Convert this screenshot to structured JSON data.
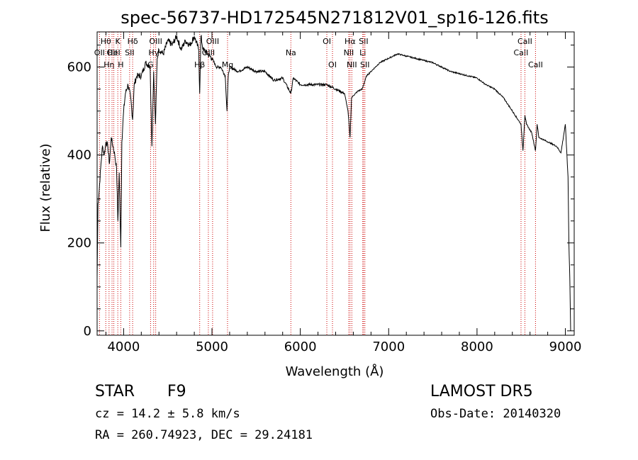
{
  "chart_data": {
    "type": "line",
    "title": "spec-56737-HD172545N271812V01_sp16-126.fits",
    "xlabel": "Wavelength (Å)",
    "ylabel": "Flux (relative)",
    "xlim": [
      3700,
      9100
    ],
    "ylim": [
      -10,
      680
    ],
    "xticks": [
      4000,
      5000,
      6000,
      7000,
      8000,
      9000
    ],
    "yticks": [
      0,
      200,
      400,
      600
    ],
    "grid": false,
    "series": [
      {
        "x": [
          3700,
          3710,
          3720,
          3740,
          3760,
          3780,
          3800,
          3820,
          3840,
          3860,
          3880,
          3900,
          3920,
          3935,
          3950,
          3968,
          3980,
          4000,
          4020,
          4050,
          4080,
          4102,
          4120,
          4150,
          4200,
          4250,
          4300,
          4320,
          4340,
          4360,
          4380,
          4400,
          4450,
          4500,
          4550,
          4600,
          4650,
          4700,
          4750,
          4800,
          4850,
          4861,
          4875,
          4900,
          4950,
          5000,
          5050,
          5100,
          5150,
          5170,
          5184,
          5200,
          5300,
          5400,
          5500,
          5600,
          5700,
          5800,
          5893,
          5920,
          6000,
          6100,
          6200,
          6300,
          6400,
          6500,
          6540,
          6563,
          6580,
          6600,
          6650,
          6700,
          6750,
          6800,
          6900,
          7000,
          7100,
          7200,
          7300,
          7400,
          7500,
          7600,
          7700,
          7800,
          7900,
          8000,
          8100,
          8200,
          8300,
          8400,
          8498,
          8520,
          8542,
          8560,
          8620,
          8662,
          8680,
          8700,
          8800,
          8900,
          8950,
          9000,
          9030,
          9040,
          9050,
          9060
        ],
        "y": [
          120,
          290,
          310,
          370,
          420,
          400,
          430,
          420,
          380,
          440,
          420,
          400,
          370,
          250,
          360,
          190,
          430,
          500,
          540,
          560,
          530,
          480,
          560,
          580,
          580,
          610,
          600,
          420,
          590,
          470,
          620,
          640,
          630,
          660,
          650,
          670,
          640,
          660,
          650,
          670,
          640,
          540,
          670,
          640,
          630,
          620,
          600,
          600,
          580,
          500,
          580,
          600,
          590,
          600,
          590,
          590,
          570,
          575,
          540,
          575,
          560,
          560,
          560,
          560,
          550,
          540,
          500,
          440,
          530,
          535,
          545,
          550,
          580,
          590,
          610,
          620,
          630,
          625,
          620,
          615,
          610,
          600,
          590,
          585,
          580,
          575,
          560,
          550,
          530,
          500,
          470,
          410,
          490,
          470,
          450,
          410,
          470,
          440,
          430,
          420,
          405,
          470,
          350,
          200,
          120,
          0
        ]
      }
    ],
    "line_marks": [
      {
        "x": 3727,
        "labels": [
          "OII"
        ],
        "row": 2
      },
      {
        "x": 3798,
        "labels": [
          "Hθ"
        ],
        "row": 1
      },
      {
        "x": 3835,
        "labels": [
          "Hη"
        ],
        "row": 3
      },
      {
        "x": 3869,
        "labels": [
          "OII"
        ],
        "row": 2
      },
      {
        "x": 3889,
        "labels": [
          "HeI"
        ],
        "row": 2
      },
      {
        "x": 3934,
        "labels": [
          "K"
        ],
        "row": 1
      },
      {
        "x": 3968,
        "labels": [
          "H"
        ],
        "row": 3
      },
      {
        "x": 4102,
        "labels": [
          "Hδ"
        ],
        "row": 1
      },
      {
        "x": 4068,
        "labels": [
          "SII"
        ],
        "row": 2
      },
      {
        "x": 4305,
        "labels": [
          "G"
        ],
        "row": 3
      },
      {
        "x": 4340,
        "labels": [
          "Hγ"
        ],
        "row": 2
      },
      {
        "x": 4363,
        "labels": [
          "OIII"
        ],
        "row": 1
      },
      {
        "x": 4861,
        "labels": [
          "Hβ"
        ],
        "row": 3
      },
      {
        "x": 4959,
        "labels": [
          "OIII"
        ],
        "row": 2
      },
      {
        "x": 5007,
        "labels": [
          "OIII"
        ],
        "row": 1
      },
      {
        "x": 5176,
        "labels": [
          "Mg"
        ],
        "row": 3
      },
      {
        "x": 5893,
        "labels": [
          "Na"
        ],
        "row": 2
      },
      {
        "x": 6300,
        "labels": [
          "OI"
        ],
        "row": 1
      },
      {
        "x": 6364,
        "labels": [
          "OI"
        ],
        "row": 3
      },
      {
        "x": 6548,
        "labels": [
          "NII"
        ],
        "row": 2
      },
      {
        "x": 6563,
        "labels": [
          "Hα"
        ],
        "row": 1
      },
      {
        "x": 6583,
        "labels": [
          "NII"
        ],
        "row": 3
      },
      {
        "x": 6707,
        "labels": [
          "Li"
        ],
        "row": 2
      },
      {
        "x": 6716,
        "labels": [
          "SII"
        ],
        "row": 1
      },
      {
        "x": 6731,
        "labels": [
          "SII"
        ],
        "row": 3
      },
      {
        "x": 8498,
        "labels": [
          "CaII"
        ],
        "row": 2
      },
      {
        "x": 8542,
        "labels": [
          "CaII"
        ],
        "row": 1
      },
      {
        "x": 8662,
        "labels": [
          "CaII"
        ],
        "row": 3
      }
    ]
  },
  "info": {
    "class_label": "STAR",
    "subclass_label": "F9",
    "survey_label": "LAMOST DR5",
    "cz_text": "cz = 14.2 ± 5.8 km/s",
    "obs_date_text": "Obs-Date: 20140320",
    "coords_text": "RA = 260.74923, DEC =  29.24181"
  },
  "colors": {
    "spectrum": "#000000",
    "line_marks": "#cc0000",
    "axes": "#000000"
  }
}
